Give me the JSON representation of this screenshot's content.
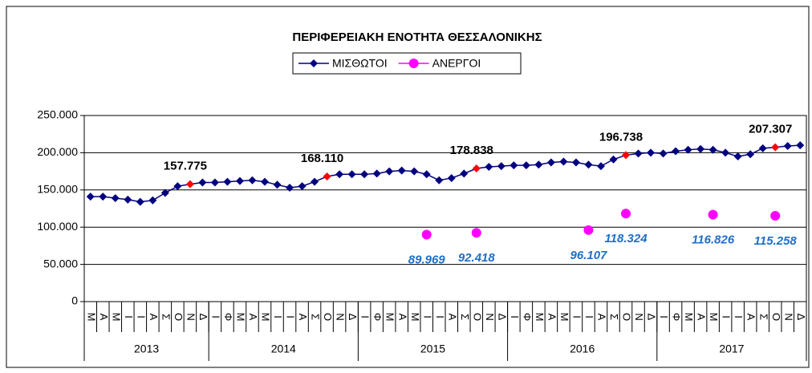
{
  "chart_data": {
    "type": "line",
    "title": "ΠΕΡΙΦΕΡΕΙΑΚΗ ΕΝΟΤΗΤΑ ΘΕΣΣΑΛΟΝΙΚΗΣ",
    "categories": [
      "Μ",
      "Α",
      "Μ",
      "Ι",
      "Ι",
      "Α",
      "Σ",
      "Ο",
      "Ν",
      "Δ",
      "Ι",
      "Φ",
      "Μ",
      "Α",
      "Μ",
      "Ι",
      "Ι",
      "Α",
      "Σ",
      "Ο",
      "Ν",
      "Δ",
      "Ι",
      "Φ",
      "Μ",
      "Α",
      "Μ",
      "Ι",
      "Ι",
      "Α",
      "Σ",
      "Ο",
      "Ν",
      "Δ",
      "Ι",
      "Φ",
      "Μ",
      "Α",
      "Μ",
      "Ι",
      "Ι",
      "Α",
      "Σ",
      "Ο",
      "Ν",
      "Δ",
      "Ι",
      "Φ",
      "Μ",
      "Α",
      "Μ",
      "Ι",
      "Ι",
      "Α",
      "Σ",
      "Ο",
      "Ν",
      "Δ"
    ],
    "groups": [
      {
        "label": "2013",
        "span": 10
      },
      {
        "label": "2014",
        "span": 12
      },
      {
        "label": "2015",
        "span": 12
      },
      {
        "label": "2016",
        "span": 12
      },
      {
        "label": "2017",
        "span": 12
      }
    ],
    "series": [
      {
        "name": "ΜΙΣΘΩΤΟΙ",
        "color": "#000080",
        "marker": "diamond",
        "line": true,
        "label_color": "#000000",
        "highlight_color": "#ff0000",
        "values": [
          141000,
          141000,
          139000,
          137000,
          134000,
          136000,
          146000,
          155000,
          157775,
          160000,
          160000,
          161000,
          162000,
          163000,
          161000,
          157000,
          153000,
          155000,
          161000,
          168110,
          171000,
          171000,
          171000,
          172000,
          175000,
          176000,
          175000,
          171000,
          163000,
          166000,
          172000,
          178838,
          181000,
          182000,
          183000,
          183000,
          184000,
          187000,
          188000,
          187000,
          184000,
          182000,
          191000,
          196738,
          199000,
          200000,
          199000,
          202000,
          204000,
          205000,
          204000,
          200000,
          195000,
          198000,
          206000,
          207307,
          209000,
          210000
        ],
        "value_labels": [
          null,
          null,
          null,
          null,
          null,
          null,
          null,
          null,
          "157.775",
          null,
          null,
          null,
          null,
          null,
          null,
          null,
          null,
          null,
          null,
          "168.110",
          null,
          null,
          null,
          null,
          null,
          null,
          null,
          null,
          null,
          null,
          null,
          "178.838",
          null,
          null,
          null,
          null,
          null,
          null,
          null,
          null,
          null,
          null,
          null,
          "196.738",
          null,
          null,
          null,
          null,
          null,
          null,
          null,
          null,
          null,
          null,
          null,
          "207.307",
          null,
          null
        ]
      },
      {
        "name": "ΑΝΕΡΓΟΙ",
        "color": "#ff00ff",
        "marker": "circle",
        "line": false,
        "label_color": "#1f6fc8",
        "values": [
          null,
          null,
          null,
          null,
          null,
          null,
          null,
          null,
          null,
          null,
          null,
          null,
          null,
          null,
          null,
          null,
          null,
          null,
          null,
          null,
          null,
          null,
          null,
          null,
          null,
          null,
          null,
          89969,
          null,
          null,
          null,
          92418,
          null,
          null,
          null,
          null,
          null,
          null,
          null,
          null,
          96107,
          null,
          null,
          118324,
          null,
          null,
          null,
          null,
          null,
          null,
          116826,
          null,
          null,
          null,
          null,
          115258,
          null,
          null
        ],
        "value_labels": [
          null,
          null,
          null,
          null,
          null,
          null,
          null,
          null,
          null,
          null,
          null,
          null,
          null,
          null,
          null,
          null,
          null,
          null,
          null,
          null,
          null,
          null,
          null,
          null,
          null,
          null,
          null,
          "89.969",
          null,
          null,
          null,
          "92.418",
          null,
          null,
          null,
          null,
          null,
          null,
          null,
          null,
          "96.107",
          null,
          null,
          "118.324",
          null,
          null,
          null,
          null,
          null,
          null,
          "116.826",
          null,
          null,
          null,
          null,
          "115.258",
          null,
          null
        ]
      }
    ],
    "ylim": [
      0,
      250000
    ],
    "yticks": [
      0,
      {
        "value": 50000,
        "label": "50.000"
      },
      {
        "value": 100000,
        "label": "100.000"
      },
      {
        "value": 150000,
        "label": "150.000"
      },
      {
        "value": 200000,
        "label": "200.000"
      },
      {
        "value": 250000,
        "label": "250.000"
      }
    ],
    "grid": true,
    "legend": "top"
  }
}
